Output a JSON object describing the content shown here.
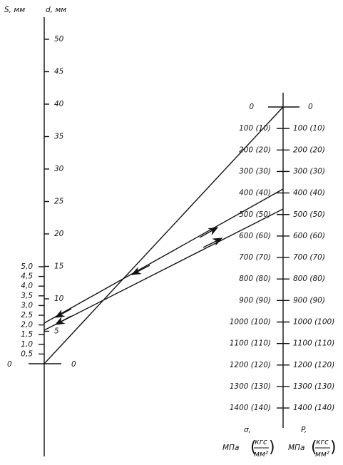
{
  "left_axis": {
    "s_label": "S, мм",
    "d_label": "d, мм",
    "zero_left": "0",
    "zero_right": "0",
    "d_ticks": [
      "5",
      "10",
      "15",
      "20",
      "25",
      "30",
      "35",
      "40",
      "45",
      "50"
    ],
    "s_ticks": [
      "0,5",
      "1,0",
      "1,5",
      "2,0",
      "2,5",
      "3,0",
      "3,5",
      "4,0",
      "4,5",
      "5,0"
    ]
  },
  "right_axis": {
    "sigma_ticks": [
      "0",
      "100 (10)",
      "200 (20)",
      "300 (30)",
      "400 (40)",
      "500 (50)",
      "600 (60)",
      "700 (70)",
      "800 (80)",
      "900 (90)",
      "1000 (100)",
      "1100 (110)",
      "1200 (120)",
      "1300 (130)",
      "1400 (140)"
    ],
    "p_ticks": [
      "0",
      "100 (10)",
      "200 (20)",
      "300 (30)",
      "400 (40)",
      "500 (50)",
      "600 (60)",
      "700 (70)",
      "800 (80)",
      "900 (90)",
      "1000 (100)",
      "1100 (110)",
      "1200 (120)",
      "1300 (130)",
      "1400 (140)"
    ],
    "sigma_label": "σ,",
    "sigma_unit": "МПа",
    "sigma_num": "кгс",
    "sigma_den": "мм²",
    "p_label": "P,",
    "p_unit": "МПа",
    "p_num": "кгс",
    "p_den": "мм²"
  }
}
